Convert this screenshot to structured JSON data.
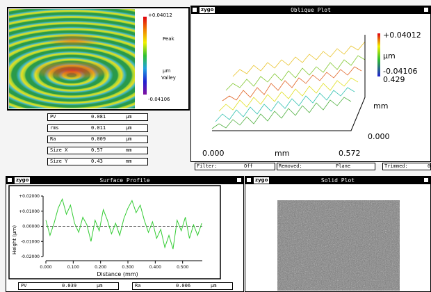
{
  "map_panel": {
    "colorbar_max": "+0.04012",
    "peak": "Peak",
    "unit": "µm",
    "valley": "Valley",
    "colorbar_min": "-0.04106"
  },
  "stats": [
    [
      "PV",
      "0.081",
      "µm"
    ],
    [
      "rms",
      "0.011",
      "µm"
    ],
    [
      "Ra",
      "0.009",
      "µm"
    ],
    [
      "Size X",
      "0.57",
      "mm"
    ],
    [
      "Size Y",
      "0.43",
      "mm"
    ]
  ],
  "oblique_plot": {
    "title": "Oblique Plot",
    "logo": "zygo",
    "z_max": "+0.04012",
    "z_unit": "µm",
    "z_min": "-0.04106",
    "y_max": "0.429",
    "y_unit": "mm",
    "y_min": "0.000",
    "x_min": "0.000",
    "x_unit": "mm",
    "x_max": "0.572"
  },
  "status": {
    "filter_label": "Filter:",
    "filter": "Off",
    "removed_label": "Removed:",
    "removed": "Plane",
    "trimmed_label": "Trimmed:",
    "trimmed": "0"
  },
  "surface_profile": {
    "type": "line",
    "title": "Surface Profile",
    "logo": "zygo",
    "y_label": "Height (µm)",
    "x_label": "Distance (mm)",
    "color": "#33cc33",
    "x": [
      0,
      0.015,
      0.03,
      0.045,
      0.06,
      0.075,
      0.09,
      0.105,
      0.12,
      0.135,
      0.15,
      0.165,
      0.18,
      0.195,
      0.21,
      0.225,
      0.24,
      0.255,
      0.27,
      0.285,
      0.3,
      0.315,
      0.33,
      0.345,
      0.36,
      0.375,
      0.39,
      0.405,
      0.42,
      0.435,
      0.45,
      0.465,
      0.48,
      0.495,
      0.51,
      0.525,
      0.54,
      0.555,
      0.57
    ],
    "values": [
      0.004,
      -0.006,
      0.002,
      0.012,
      0.018,
      0.008,
      0.014,
      0.002,
      -0.004,
      0.006,
      0.001,
      -0.01,
      0.004,
      -0.003,
      0.011,
      0.004,
      -0.005,
      0.002,
      -0.006,
      0.005,
      0.012,
      0.017,
      0.009,
      0.014,
      0.004,
      -0.004,
      0.003,
      -0.008,
      -0.002,
      -0.014,
      -0.006,
      -0.015,
      0.004,
      -0.003,
      0.006,
      -0.008,
      0.001,
      -0.006,
      0.002
    ],
    "xlim": [
      0,
      0.572
    ],
    "ylim": [
      -0.02,
      0.02
    ],
    "xticks": [
      {
        "value": 0,
        "label": "0.000"
      },
      {
        "value": 0.1,
        "label": "0.100"
      },
      {
        "value": 0.2,
        "label": "0.200"
      },
      {
        "value": 0.3,
        "label": "0.300"
      },
      {
        "value": 0.4,
        "label": "0.400"
      },
      {
        "value": 0.5,
        "label": "0.500"
      }
    ],
    "yticks": [
      {
        "value": 0.02,
        "label": "+0.02000"
      },
      {
        "value": 0.01,
        "label": "+0.01000"
      },
      {
        "value": 0,
        "label": "0.00000"
      },
      {
        "value": -0.01,
        "label": "-0.01000"
      },
      {
        "value": -0.02,
        "label": "-0.02000"
      }
    ],
    "stats": [
      [
        "PV",
        "0.039",
        "µm"
      ],
      [
        "Ra",
        "0.006",
        "µm"
      ]
    ]
  },
  "solid_plot": {
    "title": "Solid Plot",
    "logo": "zygo"
  }
}
